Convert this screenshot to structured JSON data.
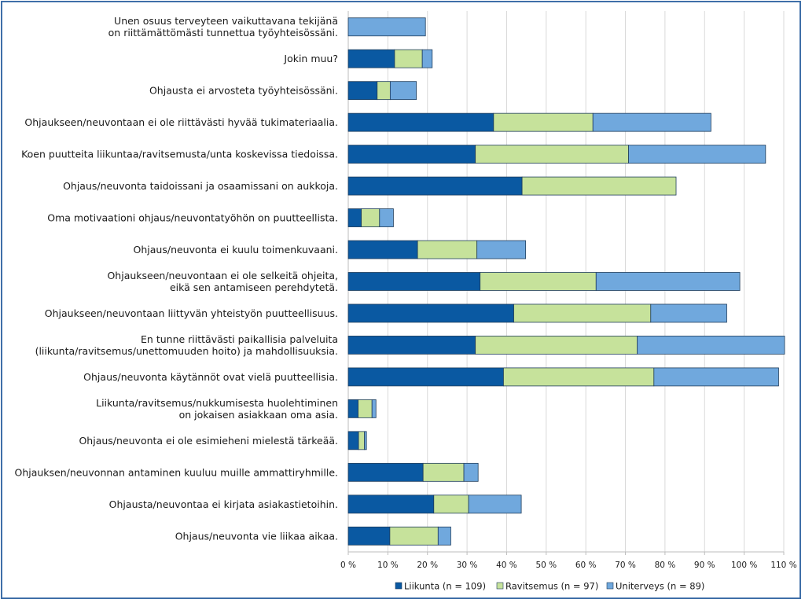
{
  "chart_data": {
    "type": "bar",
    "orientation": "horizontal",
    "stacked": true,
    "title": "",
    "xlabel": "",
    "ylabel": "",
    "xlim": [
      0,
      110
    ],
    "x_ticks": [
      "0 %",
      "10 %",
      "20 %",
      "30 %",
      "40 %",
      "50 %",
      "60 %",
      "70 %",
      "80 %",
      "90 %",
      "100 %",
      "110 %"
    ],
    "grid": true,
    "legend_position": "bottom",
    "categories": [
      "Unen osuus terveyteen vaikuttavana tekijänä\non riittämättömästi tunnettua työyhteisössäni.",
      "Jokin muu?",
      "Ohjausta ei arvosteta työyhteisössäni.",
      "Ohjaukseen/neuvontaan ei ole riittävästi hyvää tukimateriaalia.",
      "Koen puutteita liikuntaa/ravitsemusta/unta koskevissa tiedoissa.",
      "Ohjaus/neuvonta taidoissani ja osaamissani on aukkoja.",
      "Oma motivaationi ohjaus/neuvontatyöhön on puutteellista.",
      "Ohjaus/neuvonta ei kuulu toimenkuvaani.",
      "Ohjaukseen/neuvontaan ei ole selkeitä ohjeita,\neikä sen antamiseen perehdytetä.",
      "Ohjaukseen/neuvontaan liittyvän yhteistyön puutteellisuus.",
      "En tunne riittävästi paikallisia palveluita\n(liikunta/ravitsemus/unettomuuden hoito) ja mahdollisuuksia.",
      "Ohjaus/neuvonta käytännöt ovat vielä puutteellisia.",
      "Liikunta/ravitsemus/nukkumisesta huolehtiminen\non jokaisen asiakkaan oma asia.",
      "Ohjaus/neuvonta ei ole esimieheni mielestä tärkeää.",
      "Ohjauksen/neuvonnan antaminen kuuluu muille ammattiryhmille.",
      "Ohjausta/neuvontaa ei kirjata asiakastietoihin.",
      "Ohjaus/neuvonta vie liikaa aikaa."
    ],
    "series": [
      {
        "name": "Liikunta (n = 109)",
        "color": "#0a59a2",
        "values": [
          0,
          11.7,
          7.3,
          36.7,
          32.1,
          43.9,
          3.3,
          17.5,
          33.3,
          41.8,
          32.1,
          39.2,
          2.5,
          2.6,
          18.9,
          21.6,
          10.5
        ]
      },
      {
        "name": "Ravitsemus (n = 97)",
        "color": "#c6e29b",
        "values": [
          0,
          7.0,
          3.3,
          25.1,
          38.7,
          38.9,
          4.6,
          15.0,
          29.3,
          34.6,
          40.9,
          38.0,
          3.5,
          1.5,
          10.3,
          8.8,
          12.2
        ]
      },
      {
        "name": "Uniterveys (n = 89)",
        "color": "#70a8dd",
        "values": [
          19.5,
          2.5,
          6.6,
          29.8,
          34.6,
          0,
          3.5,
          12.3,
          36.3,
          19.2,
          37.2,
          31.5,
          1.0,
          0.5,
          3.6,
          13.3,
          3.2
        ]
      }
    ]
  }
}
